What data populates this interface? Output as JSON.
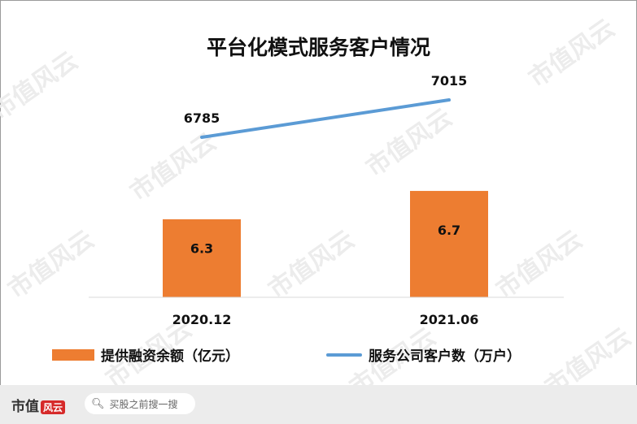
{
  "chart_data": {
    "type": "bar",
    "title": "平台化模式服务客户情况",
    "categories": [
      "2020.12",
      "2021.06"
    ],
    "series": [
      {
        "name": "提供融资余额（亿元）",
        "type": "bar",
        "values": [
          6.3,
          6.7
        ],
        "color": "#ed7d31"
      },
      {
        "name": "服务公司客户数（万户）",
        "type": "line",
        "values": [
          6785,
          7015
        ],
        "color": "#5b9bd5"
      }
    ],
    "legend": "bottom",
    "grid": false
  },
  "watermark": "市值风云",
  "footer": {
    "brand": "市值",
    "brand_mark": "风云",
    "search_placeholder": "买股之前搜一搜"
  }
}
